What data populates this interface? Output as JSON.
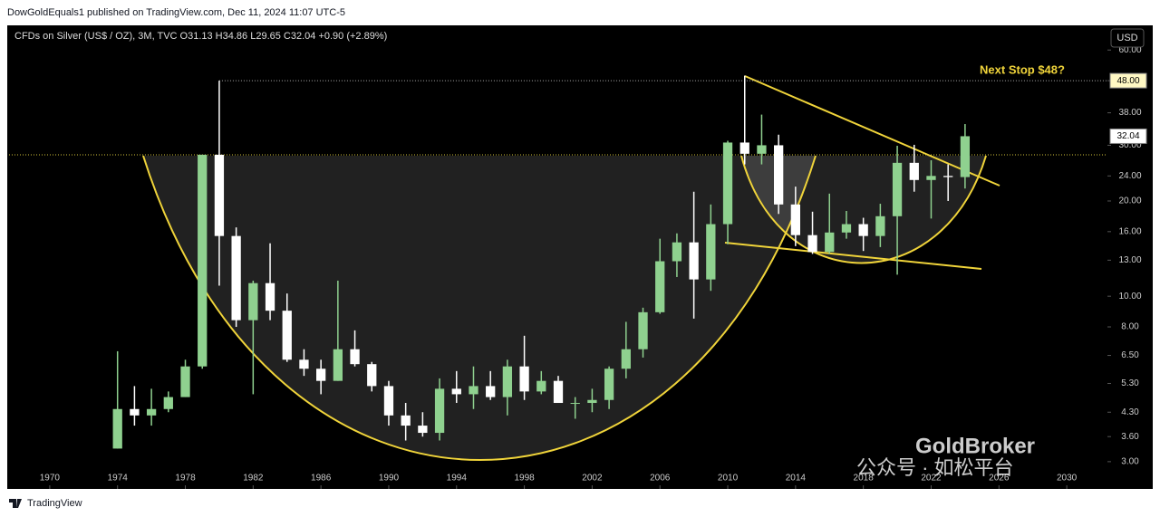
{
  "header": {
    "publisher": "DowGoldEquals1 published on TradingView.com, Dec 11, 2024 11:07 UTC-5",
    "legend": "CFDs on Silver (US$ / OZ), 3M, TVC O31.13 H34.86 L29.65 C32.04 +0.90 (+2.89%)",
    "currency": "USD"
  },
  "footer": {
    "brand": "TradingView"
  },
  "watermark": {
    "brand": "GoldBroker",
    "account": "公众号 · 如松平台"
  },
  "chart_data": {
    "type": "candlestick",
    "annotation": "Next Stop $48?",
    "price_labels": [
      {
        "value": 48,
        "label": "48.00"
      },
      {
        "value": 32.04,
        "label": "32.04"
      }
    ],
    "x": [
      1974,
      1975,
      1976,
      1977,
      1978,
      1979,
      1980,
      1981,
      1982,
      1983,
      1984,
      1985,
      1986,
      1987,
      1988,
      1989,
      1990,
      1991,
      1992,
      1993,
      1994,
      1995,
      1996,
      1997,
      1998,
      1999,
      2000,
      2001,
      2002,
      2003,
      2004,
      2005,
      2006,
      2007,
      2008,
      2009,
      2010,
      2011,
      2012,
      2013,
      2014,
      2015,
      2016,
      2017,
      2018,
      2019,
      2020,
      2021,
      2022,
      2023,
      2024
    ],
    "open": [
      3.3,
      4.4,
      4.2,
      4.4,
      4.8,
      6.0,
      28.0,
      15.5,
      8.4,
      11.0,
      9.0,
      6.3,
      5.9,
      5.4,
      6.8,
      6.1,
      5.2,
      4.2,
      3.9,
      3.7,
      5.1,
      4.9,
      5.2,
      4.8,
      6.0,
      5.0,
      5.4,
      4.6,
      4.6,
      4.7,
      5.9,
      6.8,
      8.9,
      12.9,
      14.8,
      11.3,
      16.9,
      30.6,
      28.2,
      30.0,
      19.5,
      15.6,
      13.8,
      15.9,
      16.9,
      15.5,
      17.9,
      26.4,
      23.3,
      24.0,
      23.8
    ],
    "high": [
      6.7,
      5.2,
      5.1,
      5.0,
      6.3,
      28.0,
      48.0,
      16.5,
      11.2,
      14.7,
      10.2,
      6.8,
      6.3,
      11.2,
      7.8,
      6.2,
      5.4,
      4.6,
      4.3,
      5.5,
      5.8,
      6.0,
      5.8,
      6.3,
      7.5,
      5.8,
      5.6,
      4.8,
      5.1,
      6.0,
      8.3,
      9.2,
      15.2,
      15.8,
      21.4,
      19.5,
      31.0,
      49.8,
      37.5,
      32.4,
      22.2,
      18.5,
      21.1,
      18.6,
      17.7,
      19.6,
      29.9,
      30.1,
      26.9,
      26.1,
      35.0
    ],
    "low": [
      3.3,
      3.9,
      3.9,
      4.3,
      4.8,
      5.9,
      10.8,
      8.0,
      4.9,
      8.4,
      6.2,
      5.6,
      4.9,
      5.4,
      6.0,
      5.0,
      3.9,
      3.5,
      3.6,
      3.5,
      4.6,
      4.4,
      4.7,
      4.2,
      4.7,
      4.9,
      4.6,
      4.1,
      4.3,
      4.4,
      5.5,
      6.4,
      8.8,
      11.5,
      8.5,
      10.4,
      14.6,
      26.1,
      26.1,
      18.2,
      14.4,
      13.6,
      13.6,
      15.2,
      13.9,
      14.3,
      11.7,
      21.4,
      17.6,
      20.0,
      21.9
    ],
    "close": [
      4.4,
      4.2,
      4.4,
      4.8,
      6.0,
      28.0,
      15.5,
      8.4,
      11.0,
      9.0,
      6.3,
      5.9,
      5.4,
      6.8,
      6.1,
      5.2,
      4.2,
      3.9,
      3.7,
      5.1,
      4.9,
      5.2,
      4.8,
      6.0,
      5.0,
      5.4,
      4.6,
      4.6,
      4.7,
      5.9,
      6.8,
      8.9,
      12.9,
      14.8,
      11.3,
      16.9,
      30.6,
      28.2,
      30.0,
      19.5,
      15.6,
      13.8,
      15.9,
      16.9,
      15.5,
      17.9,
      26.4,
      23.3,
      24.0,
      23.8,
      32.04
    ],
    "up_color": "#8fd18f",
    "down_color": "#ffffff",
    "log_scale": true,
    "xlim": [
      1967.6,
      2032.4
    ],
    "xticks": [
      1970,
      1974,
      1978,
      1982,
      1986,
      1990,
      1994,
      1998,
      2002,
      2006,
      2010,
      2014,
      2018,
      2022,
      2026,
      2030
    ],
    "ylim": [
      2.46,
      71.8
    ],
    "yticks": [
      {
        "value": 3,
        "label": "3.00"
      },
      {
        "value": 3.6,
        "label": "3.60"
      },
      {
        "value": 4.3,
        "label": "4.30"
      },
      {
        "value": 5.3,
        "label": "5.30"
      },
      {
        "value": 6.5,
        "label": "6.50"
      },
      {
        "value": 8,
        "label": "8.00"
      },
      {
        "value": 10,
        "label": "10.00"
      },
      {
        "value": 13,
        "label": "13.00"
      },
      {
        "value": 16,
        "label": "16.00"
      },
      {
        "value": 20,
        "label": "20.00"
      },
      {
        "value": 24,
        "label": "24.00"
      },
      {
        "value": 30,
        "label": "30.00"
      },
      {
        "value": 38,
        "label": "38.00"
      },
      {
        "value": 48,
        "label": "48.00"
      },
      {
        "value": 60,
        "label": "60.00"
      }
    ]
  }
}
